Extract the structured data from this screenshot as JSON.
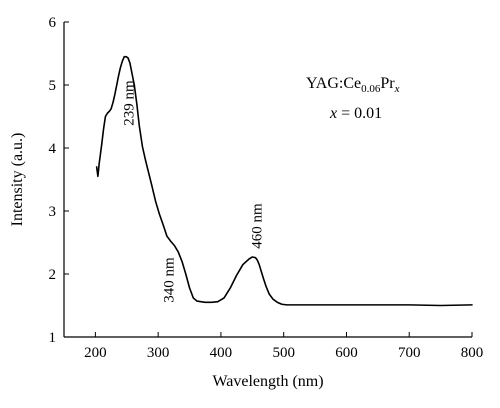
{
  "chart_data": {
    "type": "line",
    "xlabel": "Wavelength (nm)",
    "ylabel": "Intensity (a.u.)",
    "xlim": [
      150,
      800
    ],
    "ylim": [
      1,
      6
    ],
    "xticks": [
      200,
      300,
      400,
      500,
      600,
      700,
      800
    ],
    "yticks": [
      1,
      2,
      3,
      4,
      5,
      6
    ],
    "grid": false,
    "legend_position": "top-right",
    "legend": {
      "sample_prefix": "YAG:Ce",
      "sample_sub1": "0.06",
      "sample_mid": "Pr",
      "sample_sub2": "x",
      "x_var": "x",
      "x_rest": " = 0.01"
    },
    "annotations": [
      {
        "text": "239 nm",
        "x": 239
      },
      {
        "text": "340 nm",
        "x": 340
      },
      {
        "text": "460 nm",
        "x": 460
      }
    ],
    "series": [
      {
        "x": [
          202,
          204,
          206,
          208,
          210,
          213,
          216,
          219,
          222,
          225,
          228,
          231,
          234,
          237,
          240,
          243,
          246,
          249,
          252,
          255,
          258,
          262,
          266,
          270,
          275,
          280,
          285,
          290,
          296,
          302,
          308,
          314,
          320,
          326,
          332,
          338,
          344,
          350,
          356,
          362,
          368,
          375,
          385,
          395,
          405,
          415,
          425,
          435,
          445,
          450,
          455,
          458,
          461,
          464,
          468,
          472,
          477,
          483,
          490,
          497,
          505,
          515,
          530,
          550,
          600,
          650,
          700,
          750,
          800
        ],
        "y": [
          3.7,
          3.55,
          3.75,
          3.9,
          4.05,
          4.3,
          4.5,
          4.55,
          4.58,
          4.62,
          4.72,
          4.85,
          5.0,
          5.15,
          5.28,
          5.38,
          5.45,
          5.45,
          5.43,
          5.35,
          5.2,
          5.0,
          4.7,
          4.35,
          4.02,
          3.8,
          3.6,
          3.4,
          3.15,
          2.95,
          2.78,
          2.6,
          2.52,
          2.45,
          2.35,
          2.2,
          2.0,
          1.78,
          1.62,
          1.57,
          1.56,
          1.55,
          1.55,
          1.56,
          1.62,
          1.78,
          1.98,
          2.15,
          2.24,
          2.27,
          2.26,
          2.22,
          2.15,
          2.05,
          1.92,
          1.8,
          1.68,
          1.6,
          1.55,
          1.52,
          1.51,
          1.51,
          1.51,
          1.51,
          1.51,
          1.51,
          1.51,
          1.5,
          1.51
        ]
      }
    ]
  }
}
